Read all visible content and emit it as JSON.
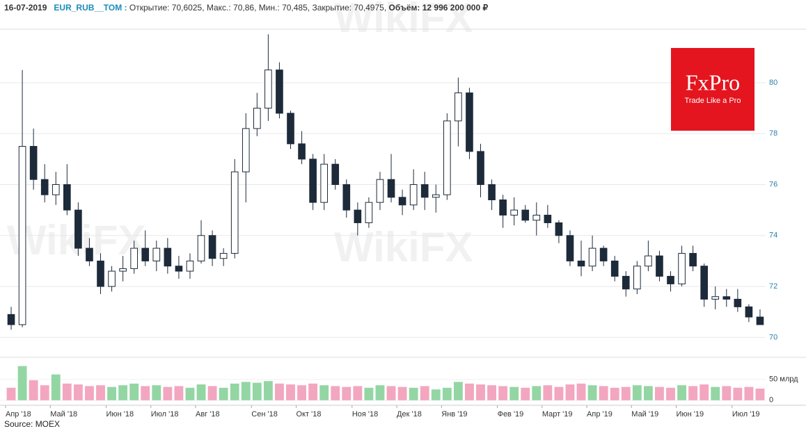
{
  "header": {
    "date": "16-07-2019",
    "symbol": "EUR_RUB__TOM :",
    "ohlc": "Открытие: 70,6025, Макс.: 70,86, Мин.: 70,485, Закрытие: 70,4975,",
    "volume": "Объём: 12 996 200 000 ₽"
  },
  "source": "Source: MOEX",
  "logo": {
    "brand": "FxPro",
    "tagline": "Trade Like a Pro"
  },
  "watermark": "WikiFX",
  "chart_data": {
    "type": "candlestick",
    "categories": [
      "Апр '18",
      null,
      null,
      null,
      "Май '18",
      null,
      null,
      null,
      null,
      "Июн '18",
      null,
      null,
      null,
      "Июл '18",
      null,
      null,
      null,
      "Авг '18",
      null,
      null,
      null,
      null,
      "Сен '18",
      null,
      null,
      null,
      "Окт '18",
      null,
      null,
      null,
      null,
      "Ноя '18",
      null,
      null,
      null,
      "Дек '18",
      null,
      null,
      null,
      "Янв '19",
      null,
      null,
      null,
      null,
      "Фев '19",
      null,
      null,
      null,
      "Март '19",
      null,
      null,
      null,
      "Апр '19",
      null,
      null,
      null,
      "Май '19",
      null,
      null,
      null,
      "Июн '19",
      null,
      null,
      null,
      null,
      "Июл '19",
      null,
      null
    ],
    "open": [
      70.9,
      70.5,
      77.5,
      76.2,
      75.6,
      76.0,
      75.0,
      73.5,
      73.0,
      72.0,
      72.6,
      72.7,
      73.5,
      73.0,
      73.5,
      72.8,
      72.6,
      73.0,
      74.0,
      73.1,
      73.3,
      76.5,
      78.2,
      79.0,
      80.5,
      78.8,
      77.6,
      77.0,
      75.3,
      76.8,
      76.0,
      75.0,
      74.5,
      75.3,
      76.2,
      75.5,
      75.2,
      76.0,
      75.5,
      75.6,
      78.5,
      79.6,
      77.3,
      76.0,
      75.4,
      74.8,
      75.0,
      74.6,
      74.8,
      74.5,
      74.0,
      73.0,
      72.8,
      73.5,
      73.0,
      72.4,
      71.9,
      72.8,
      73.2,
      72.4,
      72.1,
      73.3,
      72.8,
      71.5,
      71.6,
      71.5,
      71.2,
      70.8
    ],
    "high": [
      71.2,
      80.5,
      78.2,
      76.8,
      76.5,
      76.8,
      75.3,
      73.9,
      73.3,
      72.8,
      73.2,
      73.8,
      74.2,
      73.8,
      73.9,
      73.2,
      73.3,
      74.6,
      74.2,
      73.5,
      77.0,
      78.8,
      79.6,
      81.9,
      80.8,
      78.9,
      78.1,
      77.2,
      77.2,
      77.0,
      76.2,
      75.3,
      75.5,
      76.5,
      77.2,
      75.8,
      76.6,
      76.5,
      76.0,
      78.8,
      80.2,
      79.8,
      77.6,
      76.2,
      75.6,
      75.5,
      75.2,
      75.3,
      75.2,
      74.6,
      74.2,
      73.8,
      74.0,
      73.6,
      73.2,
      72.6,
      73.0,
      73.8,
      73.4,
      72.6,
      73.6,
      73.6,
      72.9,
      72.0,
      71.9,
      71.9,
      71.3,
      71.1
    ],
    "low": [
      70.3,
      70.4,
      75.8,
      75.3,
      75.2,
      74.8,
      73.2,
      72.8,
      71.7,
      71.8,
      72.2,
      72.5,
      72.8,
      72.6,
      72.5,
      72.3,
      72.3,
      72.9,
      72.8,
      72.8,
      73.1,
      75.3,
      77.9,
      78.5,
      78.6,
      77.4,
      76.8,
      75.0,
      75.0,
      75.8,
      74.7,
      74.0,
      74.3,
      75.0,
      75.3,
      74.8,
      75.0,
      75.0,
      74.9,
      75.4,
      77.5,
      77.0,
      75.5,
      75.0,
      74.3,
      74.4,
      74.5,
      74.0,
      74.3,
      73.7,
      72.8,
      72.4,
      72.6,
      72.8,
      72.2,
      71.6,
      71.7,
      72.6,
      72.2,
      71.8,
      72.0,
      72.6,
      71.2,
      71.1,
      71.2,
      71.0,
      70.6,
      70.5
    ],
    "close": [
      70.5,
      77.5,
      76.2,
      75.6,
      76.0,
      75.0,
      73.5,
      73.0,
      72.0,
      72.6,
      72.7,
      73.5,
      73.0,
      73.5,
      72.8,
      72.6,
      73.0,
      74.0,
      73.1,
      73.3,
      76.5,
      78.2,
      79.0,
      80.5,
      78.8,
      77.6,
      77.0,
      75.3,
      76.8,
      76.0,
      75.0,
      74.5,
      75.3,
      76.2,
      75.5,
      75.2,
      76.0,
      75.5,
      75.6,
      78.5,
      79.6,
      77.3,
      76.0,
      75.4,
      74.8,
      75.0,
      74.6,
      74.8,
      74.5,
      74.0,
      73.0,
      72.8,
      73.5,
      73.0,
      72.4,
      71.9,
      72.8,
      73.2,
      72.4,
      72.1,
      73.3,
      72.8,
      71.5,
      71.6,
      71.5,
      71.2,
      70.8,
      70.5
    ],
    "ylim": [
      69.6,
      82.1
    ],
    "yticks": [
      70,
      72,
      74,
      76,
      78,
      80
    ],
    "grid": true,
    "up_color": "#ffffff",
    "down_color": "#1c2a3a",
    "wick_color": "#1c2a3a",
    "volume": {
      "values": [
        30,
        82,
        48,
        36,
        62,
        40,
        38,
        34,
        36,
        32,
        36,
        40,
        34,
        36,
        32,
        34,
        30,
        38,
        34,
        30,
        40,
        44,
        42,
        46,
        40,
        38,
        36,
        40,
        36,
        34,
        32,
        34,
        30,
        36,
        34,
        32,
        30,
        34,
        26,
        30,
        44,
        40,
        38,
        36,
        34,
        32,
        30,
        34,
        36,
        32,
        38,
        40,
        36,
        34,
        30,
        32,
        36,
        34,
        32,
        30,
        36,
        34,
        38,
        32,
        34,
        30,
        32,
        28
      ],
      "ylim": [
        -12,
        103
      ],
      "yticks": [
        0,
        {
          "value": 50,
          "label": "50 млрд"
        }
      ],
      "up_color": "#93d6a4",
      "down_color": "#f3a6bf"
    }
  }
}
